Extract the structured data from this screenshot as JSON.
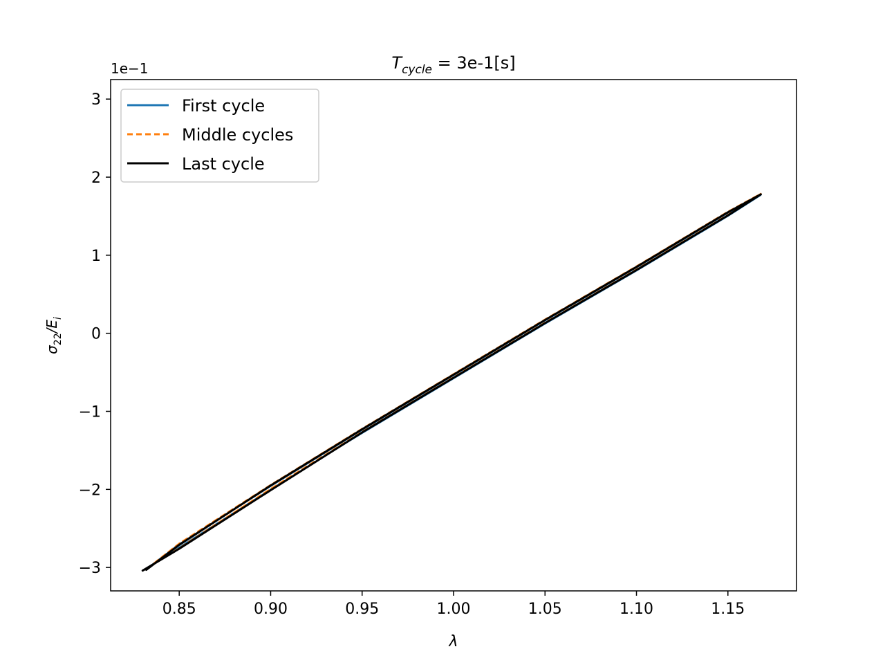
{
  "chart_data": {
    "type": "line",
    "title": {
      "main": "T",
      "sub": "cycle",
      "rest": " = 3e-1[s]"
    },
    "xlabel": "λ",
    "ylabel": {
      "main": "σ",
      "sub1": "22",
      "mid": "/E",
      "sub2": "i"
    },
    "y_offset_text": "1e−1",
    "xlim": [
      0.8125,
      1.1875
    ],
    "ylim": [
      -3.3,
      3.25
    ],
    "x_ticks": [
      {
        "value": 0.85,
        "label": "0.85"
      },
      {
        "value": 0.9,
        "label": "0.90"
      },
      {
        "value": 0.95,
        "label": "0.95"
      },
      {
        "value": 1.0,
        "label": "1.00"
      },
      {
        "value": 1.05,
        "label": "1.05"
      },
      {
        "value": 1.1,
        "label": "1.10"
      },
      {
        "value": 1.15,
        "label": "1.15"
      }
    ],
    "y_ticks": [
      {
        "value": 3,
        "label": "3"
      },
      {
        "value": 2,
        "label": "2"
      },
      {
        "value": 1,
        "label": "1"
      },
      {
        "value": 0,
        "label": "0"
      },
      {
        "value": -1,
        "label": "−1"
      },
      {
        "value": -2,
        "label": "−2"
      },
      {
        "value": -3,
        "label": "−3"
      }
    ],
    "grid": false,
    "legend_position": "top-left",
    "series": [
      {
        "name": "First cycle",
        "color": "#1f77b4",
        "dash": "solid",
        "width": 2,
        "x": [
          0.83,
          0.85,
          0.9,
          0.95,
          1.0,
          1.05,
          1.1,
          1.15,
          1.168,
          1.15,
          1.1,
          1.05,
          1.0,
          0.95,
          0.9,
          0.85,
          0.832
        ],
        "y": [
          -3.04,
          -2.74,
          -2.0,
          -1.28,
          -0.58,
          0.12,
          0.8,
          1.5,
          1.77,
          1.54,
          0.84,
          0.16,
          -0.54,
          -1.24,
          -1.96,
          -2.7,
          -3.02
        ]
      },
      {
        "name": "Middle cycles",
        "color": "#ff7f0e",
        "dash": "dashed",
        "width": 2,
        "x": [
          0.83,
          0.85,
          0.9,
          0.95,
          1.0,
          1.05,
          1.1,
          1.15,
          1.168,
          1.15,
          1.1,
          1.05,
          1.0,
          0.95,
          0.9,
          0.85,
          0.832
        ],
        "y": [
          -3.04,
          -2.75,
          -1.99,
          -1.26,
          -0.56,
          0.14,
          0.82,
          1.52,
          1.79,
          1.56,
          0.86,
          0.18,
          -0.52,
          -1.22,
          -1.94,
          -2.69,
          -3.02
        ]
      },
      {
        "name": "Last cycle",
        "color": "#000000",
        "dash": "solid",
        "width": 3,
        "x": [
          0.83,
          0.85,
          0.9,
          0.95,
          1.0,
          1.05,
          1.1,
          1.15,
          1.168,
          1.15,
          1.1,
          1.05,
          1.0,
          0.95,
          0.9,
          0.85,
          0.832
        ],
        "y": [
          -3.04,
          -2.76,
          -2.01,
          -1.27,
          -0.57,
          0.13,
          0.81,
          1.51,
          1.78,
          1.55,
          0.85,
          0.17,
          -0.53,
          -1.23,
          -1.95,
          -2.71,
          -3.03
        ]
      }
    ]
  }
}
